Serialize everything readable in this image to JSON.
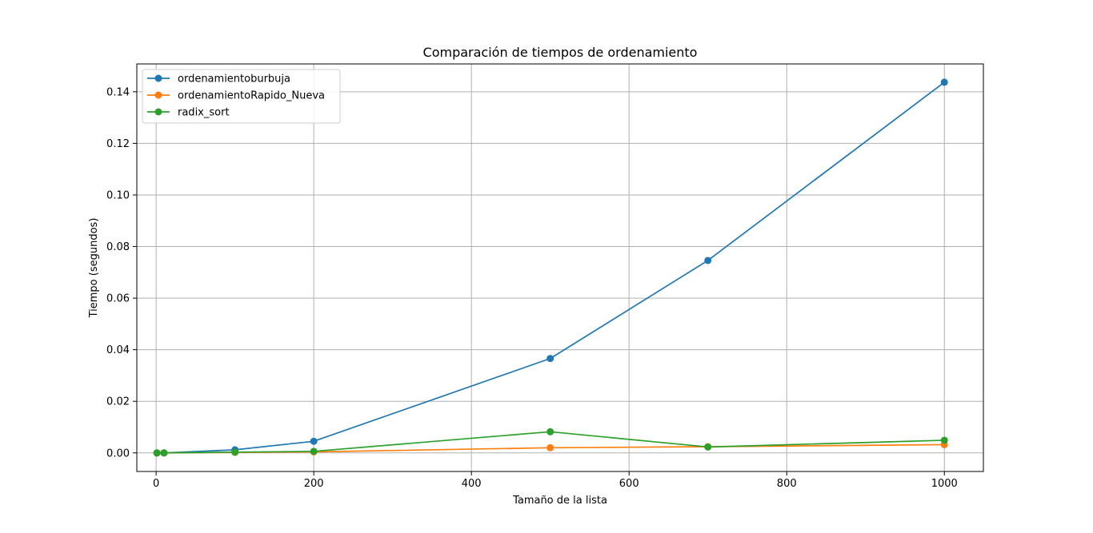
{
  "chart_data": {
    "type": "line",
    "title": "Comparación de tiempos de ordenamiento",
    "xlabel": "Tamaño de la lista",
    "ylabel": "Tiempo (segundos)",
    "xlim": [
      -24.5,
      1049.5
    ],
    "ylim": [
      -0.0072,
      0.1508
    ],
    "xticks": [
      0,
      200,
      400,
      600,
      800,
      1000
    ],
    "xtick_labels": [
      "0",
      "200",
      "400",
      "600",
      "800",
      "1000"
    ],
    "yticks": [
      0.0,
      0.02,
      0.04,
      0.06,
      0.08,
      0.1,
      0.12,
      0.14
    ],
    "ytick_labels": [
      "0.00",
      "0.02",
      "0.04",
      "0.06",
      "0.08",
      "0.10",
      "0.12",
      "0.14"
    ],
    "grid": true,
    "legend_position": "top-left",
    "x": [
      1,
      10,
      100,
      200,
      500,
      700,
      1000
    ],
    "series": [
      {
        "name": "ordenamientoburbuja",
        "color": "#1f77b4",
        "marker": "circle",
        "values": [
          0.0,
          0.0,
          0.0012,
          0.0045,
          0.0366,
          0.0746,
          0.1437
        ]
      },
      {
        "name": "ordenamientoRapido_Nueva",
        "color": "#ff7f0e",
        "marker": "circle",
        "values": [
          0.0,
          0.0,
          0.0002,
          0.0004,
          0.002,
          0.0024,
          0.0032
        ]
      },
      {
        "name": "radix_sort",
        "color": "#2ca02c",
        "marker": "circle",
        "values": [
          0.0,
          0.0,
          0.0003,
          0.0006,
          0.0082,
          0.0023,
          0.0049
        ]
      }
    ]
  }
}
